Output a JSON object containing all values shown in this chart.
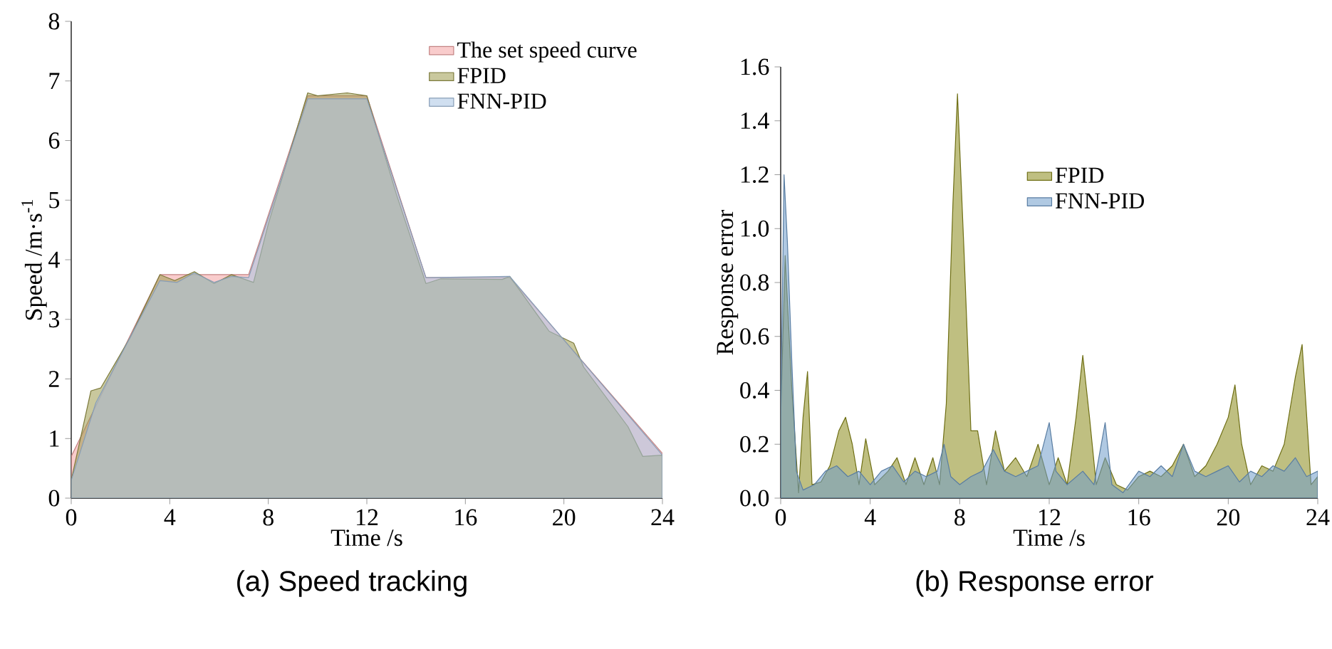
{
  "chart_data": [
    {
      "type": "area",
      "title": "(a) Speed tracking",
      "xlabel": "Time /s",
      "ylabel": "Speed /m·s$^{-1}$",
      "xlim": [
        0,
        24
      ],
      "ylim": [
        0,
        8
      ],
      "xticks": [
        0,
        4,
        8,
        12,
        16,
        20,
        24
      ],
      "yticks": [
        0,
        1,
        2,
        3,
        4,
        5,
        6,
        7,
        8
      ],
      "legend": "top right",
      "grid": false,
      "series": [
        {
          "name": "The set speed curve",
          "color": "#f4a3a3",
          "x": [
            0,
            3.6,
            7.2,
            9.6,
            12,
            14.4,
            17.8,
            24
          ],
          "values": [
            0.7,
            3.75,
            3.75,
            6.75,
            6.75,
            3.7,
            3.7,
            0.75
          ]
        },
        {
          "name": "FPID",
          "color": "#9c9a4c",
          "x": [
            0,
            0.8,
            1.2,
            2.4,
            3.6,
            4.2,
            5,
            5.8,
            6.5,
            7.4,
            8,
            9.6,
            10,
            11.2,
            12,
            13.2,
            14.4,
            15,
            17.5,
            17.8,
            19.4,
            20.4,
            20.8,
            22.6,
            23.2,
            24
          ],
          "values": [
            0.3,
            1.8,
            1.85,
            2.7,
            3.75,
            3.65,
            3.8,
            3.6,
            3.75,
            3.62,
            4.6,
            6.8,
            6.75,
            6.8,
            6.75,
            5.1,
            3.6,
            3.68,
            3.67,
            3.72,
            2.8,
            2.6,
            2.2,
            1.2,
            0.7,
            0.72
          ]
        },
        {
          "name": "FNN-PID",
          "color": "#a9c4e4",
          "x": [
            0,
            1,
            3.6,
            4.3,
            5,
            5.8,
            6.5,
            7.2,
            9.6,
            12,
            14.4,
            17.8,
            24
          ],
          "values": [
            0.3,
            1.6,
            3.65,
            3.62,
            3.78,
            3.62,
            3.72,
            3.7,
            6.7,
            6.7,
            3.7,
            3.72,
            0.72
          ]
        }
      ]
    },
    {
      "type": "area",
      "title": "(b) Response error",
      "xlabel": "Time /s",
      "ylabel": "Response error",
      "xlim": [
        0,
        24
      ],
      "ylim": [
        0,
        1.6
      ],
      "xticks": [
        0,
        4,
        8,
        12,
        16,
        20,
        24
      ],
      "yticks": [
        {
          "value": 0,
          "label": "0.0"
        },
        {
          "value": 0.2,
          "label": "0.2"
        },
        {
          "value": 0.4,
          "label": "0.4"
        },
        {
          "value": 0.6,
          "label": "0.6"
        },
        {
          "value": 0.8,
          "label": "0.8"
        },
        {
          "value": 1.0,
          "label": "1.0"
        },
        {
          "value": 1.2,
          "label": "1.2"
        },
        {
          "value": 1.4,
          "label": "1.4"
        },
        {
          "value": 1.6,
          "label": "1.6"
        }
      ],
      "legend": "top",
      "grid": false,
      "series": [
        {
          "name": "FPID",
          "color": "#8b8b1a",
          "x": [
            0,
            0.2,
            0.5,
            0.8,
            1.0,
            1.2,
            1.4,
            1.8,
            2.2,
            2.6,
            2.9,
            3.2,
            3.5,
            3.8,
            4.2,
            4.8,
            5.2,
            5.6,
            6.0,
            6.4,
            6.8,
            7.1,
            7.4,
            7.7,
            7.9,
            8.2,
            8.5,
            8.8,
            9.2,
            9.6,
            10,
            10.5,
            11,
            11.5,
            12,
            12.4,
            12.8,
            13.2,
            13.5,
            13.8,
            14.1,
            14.5,
            15,
            15.5,
            16,
            16.5,
            17,
            17.5,
            18,
            18.5,
            19,
            19.5,
            20,
            20.3,
            20.6,
            21,
            21.5,
            22,
            22.5,
            23,
            23.3,
            23.7,
            24
          ],
          "values": [
            0.3,
            0.9,
            0.4,
            0.02,
            0.3,
            0.47,
            0.05,
            0.06,
            0.12,
            0.25,
            0.3,
            0.2,
            0.05,
            0.22,
            0.05,
            0.1,
            0.15,
            0.05,
            0.15,
            0.05,
            0.15,
            0.05,
            0.35,
            1.1,
            1.5,
            0.9,
            0.25,
            0.25,
            0.05,
            0.25,
            0.1,
            0.15,
            0.08,
            0.2,
            0.05,
            0.15,
            0.05,
            0.3,
            0.53,
            0.3,
            0.05,
            0.15,
            0.05,
            0.03,
            0.08,
            0.1,
            0.08,
            0.12,
            0.2,
            0.08,
            0.12,
            0.2,
            0.3,
            0.42,
            0.2,
            0.05,
            0.12,
            0.1,
            0.2,
            0.45,
            0.57,
            0.05,
            0.08
          ]
        },
        {
          "name": "FNN-PID",
          "color": "#6f9ccb",
          "x": [
            0,
            0.15,
            0.3,
            0.5,
            0.7,
            1.0,
            1.5,
            2,
            2.5,
            3,
            3.5,
            4,
            4.5,
            5,
            5.5,
            6,
            6.5,
            7,
            7.3,
            7.6,
            8,
            8.5,
            9,
            9.5,
            10,
            10.5,
            11,
            11.5,
            12,
            12.3,
            12.8,
            13.5,
            14,
            14.5,
            14.8,
            15.3,
            16,
            16.5,
            17,
            17.5,
            18,
            18.5,
            19,
            19.5,
            20,
            20.5,
            21,
            21.5,
            22,
            22.5,
            23,
            23.5,
            24
          ],
          "values": [
            0.3,
            1.2,
            0.95,
            0.5,
            0.1,
            0.03,
            0.05,
            0.1,
            0.12,
            0.08,
            0.1,
            0.05,
            0.1,
            0.12,
            0.06,
            0.1,
            0.08,
            0.1,
            0.2,
            0.08,
            0.05,
            0.08,
            0.1,
            0.18,
            0.1,
            0.08,
            0.1,
            0.12,
            0.28,
            0.1,
            0.05,
            0.1,
            0.05,
            0.28,
            0.05,
            0.02,
            0.1,
            0.08,
            0.12,
            0.08,
            0.2,
            0.1,
            0.08,
            0.1,
            0.12,
            0.06,
            0.1,
            0.08,
            0.12,
            0.1,
            0.15,
            0.08,
            0.1
          ]
        }
      ]
    }
  ]
}
